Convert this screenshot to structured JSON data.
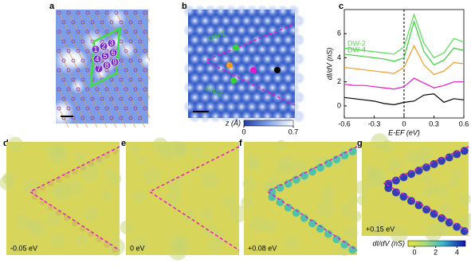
{
  "panels": {
    "a": {
      "letter": "a",
      "numbers": [
        "1",
        "2",
        "3",
        "4",
        "5",
        "6",
        "7",
        "8",
        "9"
      ]
    },
    "b": {
      "letter": "b",
      "labels": [
        "DW-2",
        "DW-4"
      ],
      "colorbar": {
        "label": "z (Å)",
        "lim": [
          0,
          0.7
        ],
        "ticks": [
          0,
          0.7
        ]
      }
    },
    "c": {
      "letter": "c"
    },
    "d": {
      "letter": "d",
      "energy": "-0.05 eV"
    },
    "e": {
      "letter": "e",
      "energy": "0 eV"
    },
    "f": {
      "letter": "f",
      "energy": "+0.08 eV"
    },
    "g": {
      "letter": "g",
      "energy": "+0.15 eV",
      "colorbar": {
        "label": "dI/dV (nS)",
        "lim": [
          -0.6,
          4.8
        ],
        "ticks": [
          0,
          2,
          4
        ]
      }
    }
  },
  "chart_data": {
    "type": "line",
    "xlabel": "E-EF (eV)",
    "ylabel": "dI/dV (nS)",
    "x": [
      -0.6,
      -0.5,
      -0.4,
      -0.3,
      -0.2,
      -0.1,
      0,
      0.1,
      0.2,
      0.3,
      0.4,
      0.5,
      0.6
    ],
    "xlim": [
      -0.6,
      0.6
    ],
    "xticks": [
      -0.6,
      -0.3,
      0,
      0.3,
      0.6
    ],
    "ylim": [
      -1,
      8
    ],
    "yticks": [
      0,
      2,
      4,
      6
    ],
    "series": [
      {
        "color": "#000000",
        "values": [
          0.7,
          0.6,
          0.5,
          0.4,
          0.2,
          0.1,
          0.3,
          0.4,
          0.9,
          1.0,
          0.3,
          0.6,
          0.5
        ]
      },
      {
        "color": "#e619c8",
        "values": [
          1.8,
          1.7,
          1.7,
          1.6,
          1.5,
          1.4,
          1.6,
          2.3,
          1.9,
          1.5,
          1.7,
          2.0,
          2.0
        ]
      },
      {
        "color": "#f39a1f",
        "values": [
          3.2,
          3.1,
          3.0,
          2.9,
          2.8,
          2.7,
          3.2,
          5.0,
          3.4,
          2.6,
          2.9,
          3.6,
          3.5
        ]
      },
      {
        "name": "DW-4",
        "color": "#3ccf3c",
        "values": [
          4.3,
          4.2,
          4.1,
          4.0,
          3.9,
          3.7,
          4.0,
          7.0,
          4.5,
          3.4,
          3.8,
          4.8,
          4.6
        ]
      },
      {
        "name": "DW-2",
        "color": "#55e055",
        "values": [
          4.8,
          4.7,
          4.6,
          4.5,
          4.4,
          4.3,
          4.9,
          7.6,
          5.2,
          4.0,
          4.4,
          5.6,
          5.3
        ]
      }
    ]
  }
}
